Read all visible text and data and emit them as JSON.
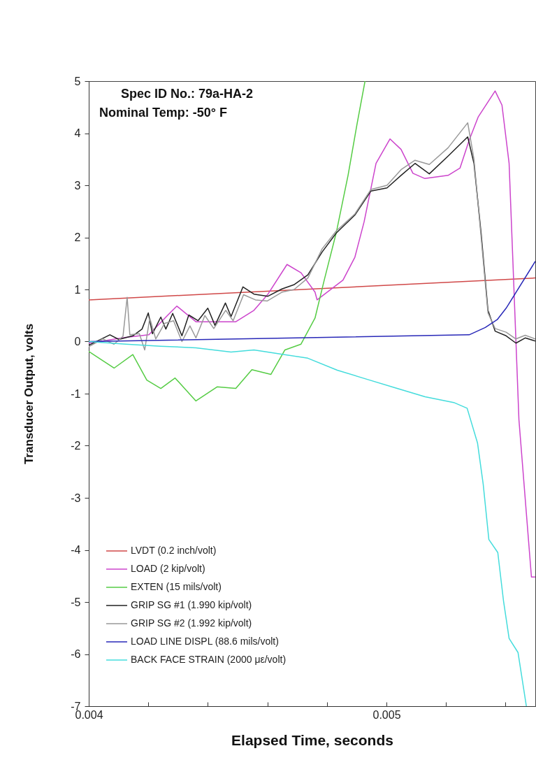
{
  "chart_data": {
    "type": "line",
    "xlabel": "Elapsed Time,  seconds",
    "ylabel": "Transducer Output,  volts",
    "xlim": [
      0.004,
      0.0055
    ],
    "ylim": [
      -7,
      5
    ],
    "xticks": [
      0.004,
      {
        "value": 0.0042,
        "label": null
      },
      {
        "value": 0.0044,
        "label": null
      },
      {
        "value": 0.0046,
        "label": null
      },
      {
        "value": 0.0048,
        "label": null
      },
      0.005,
      {
        "value": 0.0052,
        "label": null
      },
      {
        "value": 0.0054,
        "label": null
      }
    ],
    "yticks": [
      -7,
      -6,
      -5,
      -4,
      -3,
      -2,
      -1,
      0,
      1,
      2,
      3,
      4,
      5
    ],
    "grid": false,
    "legend": "bottom left",
    "line_style": "solid",
    "annotations": [
      "Spec ID No.: 79a-HA-2",
      "Nominal Temp: -50° F"
    ],
    "series": [
      {
        "name": "LVDT (0.2 inch/volt)",
        "color": "#d04848",
        "x": [
          0.004,
          0.0055
        ],
        "values": [
          0.8,
          1.22
        ]
      },
      {
        "name": "LOAD (2 kip/volt)",
        "color": "#cc44cc",
        "x": [
          0.004,
          0.004125,
          0.004202,
          0.004266,
          0.004296,
          0.00436,
          0.004414,
          0.004494,
          0.004555,
          0.004602,
          0.004666,
          0.004713,
          0.00476,
          0.004767,
          0.004854,
          0.004894,
          0.004925,
          0.004965,
          0.005012,
          0.005049,
          0.005089,
          0.005129,
          0.005207,
          0.005247,
          0.005278,
          0.005308,
          0.005365,
          0.005388,
          0.005412,
          0.005425,
          0.005445,
          0.005487,
          0.0055
        ],
        "values": [
          -0.03,
          0.08,
          0.13,
          0.51,
          0.68,
          0.38,
          0.38,
          0.38,
          0.6,
          0.91,
          1.48,
          1.32,
          0.95,
          0.8,
          1.18,
          1.62,
          2.3,
          3.42,
          3.89,
          3.69,
          3.23,
          3.13,
          3.19,
          3.33,
          3.87,
          4.31,
          4.81,
          4.54,
          3.42,
          1.5,
          -1.5,
          -4.52,
          -4.52
        ]
      },
      {
        "name": "EXTEN (15 mils/volt)",
        "color": "#55cc44",
        "x": [
          0.004,
          0.004085,
          0.004148,
          0.004195,
          0.004242,
          0.00429,
          0.00436,
          0.004431,
          0.004494,
          0.004548,
          0.004612,
          0.004659,
          0.004713,
          0.00476,
          0.004791,
          0.004831,
          0.004871,
          0.004901,
          0.004928
        ],
        "values": [
          -0.19,
          -0.51,
          -0.25,
          -0.74,
          -0.9,
          -0.7,
          -1.14,
          -0.87,
          -0.9,
          -0.54,
          -0.63,
          -0.16,
          -0.05,
          0.45,
          1.18,
          2.08,
          3.19,
          4.17,
          5
        ]
      },
      {
        "name": "GRIP SG #1 (1.990 kip/volt)",
        "color": "#222222",
        "x": [
          0.004,
          0.004071,
          0.004101,
          0.004148,
          0.004179,
          0.0042,
          0.004214,
          0.004242,
          0.004259,
          0.004282,
          0.004313,
          0.004336,
          0.004367,
          0.0044,
          0.004424,
          0.004459,
          0.004478,
          0.004518,
          0.004555,
          0.004602,
          0.004649,
          0.004689,
          0.004736,
          0.004784,
          0.004831,
          0.004894,
          0.004948,
          0.005002,
          0.005049,
          0.005096,
          0.005144,
          0.005207,
          0.005273,
          0.005294,
          0.005318,
          0.005341,
          0.005365,
          0.005402,
          0.005435,
          0.005466,
          0.0055
        ],
        "values": [
          -0.07,
          0.13,
          0.04,
          0.11,
          0.24,
          0.55,
          0.15,
          0.47,
          0.24,
          0.54,
          0.11,
          0.51,
          0.4,
          0.64,
          0.31,
          0.74,
          0.48,
          1.05,
          0.91,
          0.87,
          1.01,
          1.09,
          1.28,
          1.72,
          2.08,
          2.43,
          2.89,
          2.95,
          3.19,
          3.42,
          3.22,
          3.56,
          3.93,
          3.42,
          2.08,
          0.6,
          0.2,
          0.11,
          -0.03,
          0.07,
          0.01
        ]
      },
      {
        "name": "GRIP SG #2 (1.992 kip/volt)",
        "color": "#999999",
        "x": [
          0.004,
          0.004047,
          0.004085,
          0.004115,
          0.004129,
          0.004138,
          0.00417,
          0.004188,
          0.004205,
          0.004225,
          0.004255,
          0.004285,
          0.004313,
          0.00434,
          0.00436,
          0.00439,
          0.00442,
          0.00446,
          0.004485,
          0.00452,
          0.00456,
          0.0046,
          0.00465,
          0.00469,
          0.004736,
          0.004784,
          0.004831,
          0.004894,
          0.004948,
          0.005002,
          0.005049,
          0.005096,
          0.005144,
          0.005207,
          0.005273,
          0.005294,
          0.005318,
          0.005341,
          0.005365,
          0.005402,
          0.005435,
          0.005466,
          0.0055
        ],
        "values": [
          -0.1,
          0.05,
          -0.05,
          0.1,
          0.85,
          0.13,
          0.15,
          -0.16,
          0.45,
          0.05,
          0.35,
          0.4,
          0.0,
          0.3,
          0.07,
          0.5,
          0.25,
          0.6,
          0.4,
          0.9,
          0.8,
          0.78,
          0.95,
          1.0,
          1.22,
          1.78,
          2.12,
          2.45,
          2.92,
          3.0,
          3.3,
          3.48,
          3.4,
          3.72,
          4.2,
          3.5,
          2.0,
          0.55,
          0.25,
          0.18,
          0.05,
          0.12,
          0.05
        ]
      },
      {
        "name": "LOAD LINE DISPL (88.6 mils/volt)",
        "color": "#2828b8",
        "x": [
          0.004,
          0.005278,
          0.005332,
          0.005372,
          0.005402,
          0.0055
        ],
        "values": [
          0,
          0.13,
          0.27,
          0.42,
          0.64,
          1.54
        ]
      },
      {
        "name": "BACK FACE STRAIN (2000 με/volt)",
        "color": "#44dcdc",
        "x": [
          0.004,
          0.004125,
          0.004242,
          0.00436,
          0.004478,
          0.004555,
          0.004635,
          0.004736,
          0.004835,
          0.004932,
          0.00503,
          0.00513,
          0.005226,
          0.005271,
          0.005306,
          0.005325,
          0.005344,
          0.005374,
          0.005393,
          0.005412,
          0.005442,
          0.00547
        ],
        "values": [
          0,
          -0.05,
          -0.09,
          -0.12,
          -0.2,
          -0.16,
          -0.23,
          -0.32,
          -0.55,
          -0.72,
          -0.89,
          -1.06,
          -1.17,
          -1.28,
          -1.95,
          -2.74,
          -3.8,
          -4.05,
          -4.97,
          -5.7,
          -5.97,
          -7.0
        ]
      }
    ]
  }
}
